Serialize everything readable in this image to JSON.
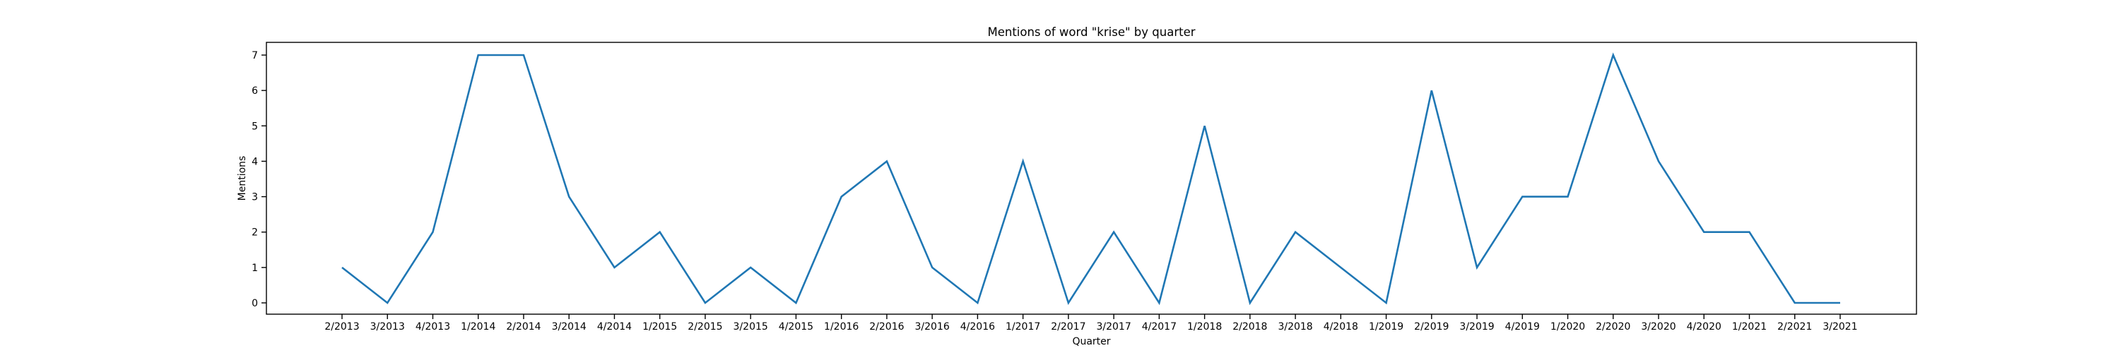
{
  "chart_data": {
    "type": "line",
    "title": "Mentions of word \"krise\" by quarter",
    "xlabel": "Quarter",
    "ylabel": "Mentions",
    "ylim": [
      0,
      7
    ],
    "yticks": [
      0,
      1,
      2,
      3,
      4,
      5,
      6,
      7
    ],
    "grid": false,
    "line_color": "#1f77b4",
    "categories": [
      "2/2013",
      "3/2013",
      "4/2013",
      "1/2014",
      "2/2014",
      "3/2014",
      "4/2014",
      "1/2015",
      "2/2015",
      "3/2015",
      "4/2015",
      "1/2016",
      "2/2016",
      "3/2016",
      "4/2016",
      "1/2017",
      "2/2017",
      "3/2017",
      "4/2017",
      "1/2018",
      "2/2018",
      "3/2018",
      "4/2018",
      "1/2019",
      "2/2019",
      "3/2019",
      "4/2019",
      "1/2020",
      "2/2020",
      "3/2020",
      "4/2020",
      "1/2021",
      "2/2021",
      "3/2021"
    ],
    "values": [
      1,
      0,
      2,
      7,
      7,
      3,
      1,
      2,
      0,
      1,
      0,
      3,
      4,
      1,
      0,
      4,
      0,
      2,
      0,
      5,
      0,
      2,
      1,
      0,
      6,
      1,
      3,
      3,
      7,
      4,
      2,
      2,
      0,
      0
    ]
  }
}
